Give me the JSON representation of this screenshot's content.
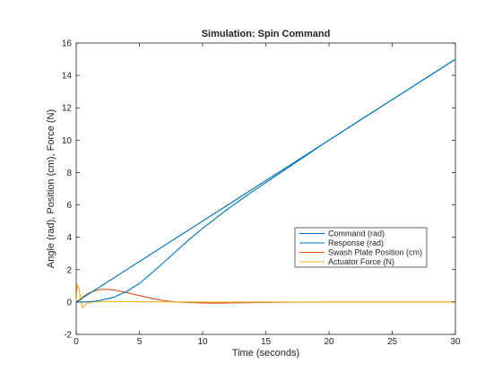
{
  "chart_data": {
    "type": "line",
    "title": "Simulation: Spin Command",
    "xlabel": "Time (seconds)",
    "ylabel": "Angle (rad), Position (cm), Force (N)",
    "xlim": [
      0,
      30
    ],
    "ylim": [
      -2,
      16
    ],
    "xticks": [
      0,
      5,
      10,
      15,
      20,
      25,
      30
    ],
    "yticks": [
      -2,
      0,
      2,
      4,
      6,
      8,
      10,
      12,
      14,
      16
    ],
    "grid": false,
    "legend_position": "center-right",
    "series": [
      {
        "name": "Command (rad)",
        "color": "#0072bd",
        "x": [
          0,
          30
        ],
        "y": [
          0,
          15
        ]
      },
      {
        "name": "Response (rad)",
        "color": "#0072bd",
        "x": [
          0,
          0.5,
          1,
          1.5,
          2,
          3,
          4,
          5,
          6,
          7,
          8,
          9,
          10,
          12,
          14,
          16,
          18,
          20,
          22,
          24,
          26,
          28,
          30
        ],
        "y": [
          0,
          0,
          0.02,
          0.05,
          0.12,
          0.3,
          0.65,
          1.15,
          1.8,
          2.5,
          3.2,
          3.9,
          4.55,
          5.75,
          6.85,
          7.9,
          8.95,
          10.0,
          11.0,
          12.0,
          13.0,
          14.0,
          15.0
        ]
      },
      {
        "name": "Swash Plate Position (cm)",
        "color": "#d95319",
        "x": [
          0,
          0.3,
          0.6,
          1,
          1.5,
          2,
          2.5,
          3,
          3.5,
          4,
          5,
          6,
          7,
          8,
          9,
          10,
          11,
          12,
          14,
          16,
          18,
          20,
          25,
          30
        ],
        "y": [
          0,
          0.15,
          0.35,
          0.55,
          0.7,
          0.78,
          0.78,
          0.74,
          0.67,
          0.58,
          0.4,
          0.22,
          0.08,
          0.0,
          -0.04,
          -0.06,
          -0.07,
          -0.06,
          -0.04,
          -0.02,
          -0.01,
          0.0,
          0.0,
          0.0
        ]
      },
      {
        "name": "Actuator Force (N)",
        "color": "#edb120",
        "x": [
          0,
          0.1,
          0.2,
          0.35,
          0.5,
          0.65,
          0.8,
          1.0,
          1.3,
          1.6,
          2,
          3,
          5,
          10,
          20,
          30
        ],
        "y": [
          0,
          1.1,
          0.9,
          0.2,
          -0.35,
          -0.25,
          -0.12,
          -0.05,
          0.0,
          0.02,
          0.03,
          0.03,
          0.02,
          0.0,
          0.0,
          0.0
        ]
      }
    ],
    "reference_line": {
      "color": "#a0a0a0",
      "x": [
        0,
        30
      ],
      "y": [
        0,
        15
      ]
    }
  }
}
